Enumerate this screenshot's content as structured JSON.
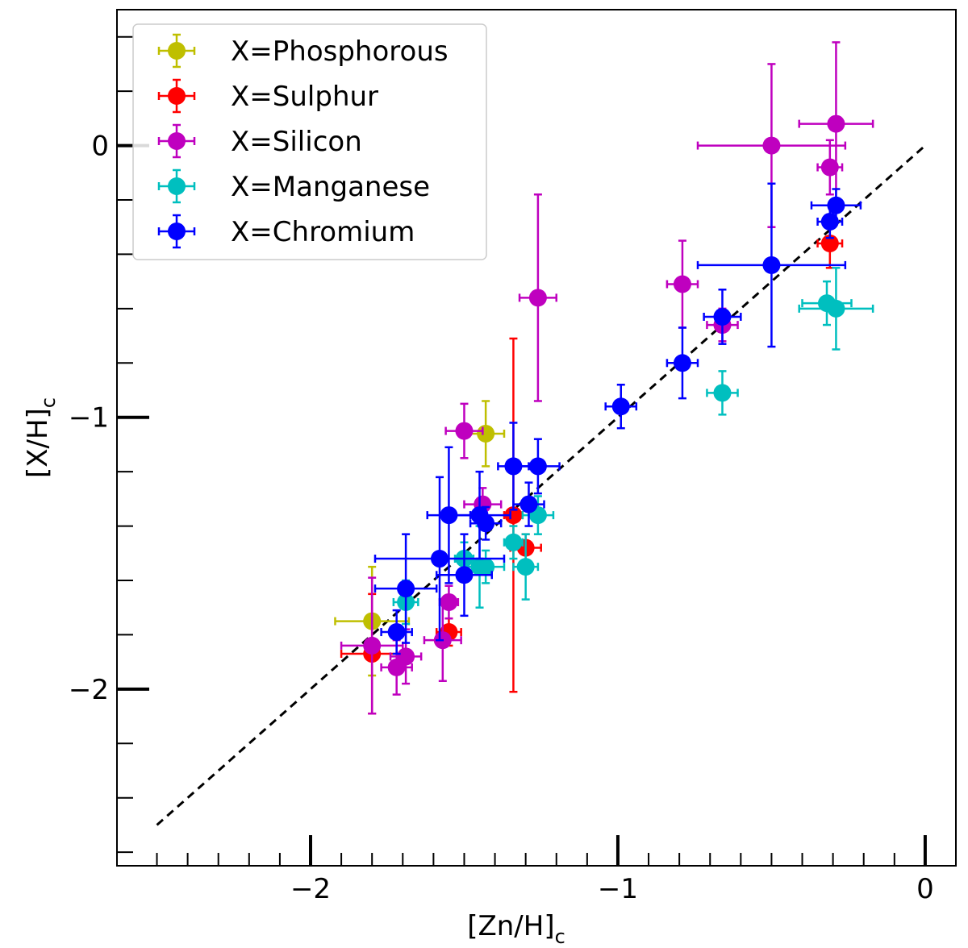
{
  "chart_data": {
    "type": "scatter",
    "xlabel": "[Zn/H]",
    "xlabel_sub": "c",
    "ylabel": "[X/H]",
    "ylabel_sub": "c",
    "xlim": [
      -2.63,
      0.1
    ],
    "ylim": [
      -2.65,
      0.5
    ],
    "x_ticks": [
      {
        "value": -2,
        "label": "−2"
      },
      {
        "value": -1,
        "label": "−1"
      },
      {
        "value": 0,
        "label": "0"
      }
    ],
    "y_ticks": [
      {
        "value": 0,
        "label": "0"
      },
      {
        "value": -1,
        "label": "−1"
      },
      {
        "value": -2,
        "label": "−2"
      }
    ],
    "reference_line": {
      "style": "dashed",
      "color": "#000000",
      "x": [
        -2.5,
        0.0
      ],
      "y": [
        -2.5,
        0.0
      ]
    },
    "legend_position": "top-left",
    "series": [
      {
        "name": "X=Phosphorous",
        "color": "#bfbf00",
        "points": [
          {
            "x": -1.8,
            "y": -1.75,
            "xerr": 0.12,
            "yerr": 0.2
          },
          {
            "x": -1.43,
            "y": -1.06,
            "xerr": 0.06,
            "yerr": 0.12
          }
        ]
      },
      {
        "name": "X=Sulphur",
        "color": "#ff0000",
        "points": [
          {
            "x": -1.8,
            "y": -1.87,
            "xerr": 0.1,
            "yerr": 0.22
          },
          {
            "x": -1.55,
            "y": -1.79,
            "xerr": 0.04,
            "yerr": 0.05
          },
          {
            "x": -1.34,
            "y": -1.36,
            "xerr": 0.03,
            "yerr": 0.65
          },
          {
            "x": -1.3,
            "y": -1.48,
            "xerr": 0.05,
            "yerr": 0.05
          },
          {
            "x": -0.31,
            "y": -0.36,
            "xerr": 0.04,
            "yerr": 0.09
          }
        ]
      },
      {
        "name": "X=Silicon",
        "color": "#bf00bf",
        "points": [
          {
            "x": -1.8,
            "y": -1.84,
            "xerr": 0.1,
            "yerr": 0.25
          },
          {
            "x": -1.72,
            "y": -1.92,
            "xerr": 0.05,
            "yerr": 0.1
          },
          {
            "x": -1.69,
            "y": -1.88,
            "xerr": 0.05,
            "yerr": 0.1
          },
          {
            "x": -1.57,
            "y": -1.82,
            "xerr": 0.06,
            "yerr": 0.15
          },
          {
            "x": -1.55,
            "y": -1.68,
            "xerr": 0.03,
            "yerr": 0.06
          },
          {
            "x": -1.5,
            "y": -1.05,
            "xerr": 0.06,
            "yerr": 0.1
          },
          {
            "x": -1.44,
            "y": -1.32,
            "xerr": 0.06,
            "yerr": 0.06
          },
          {
            "x": -1.26,
            "y": -0.56,
            "xerr": 0.06,
            "yerr": 0.38
          },
          {
            "x": -0.79,
            "y": -0.51,
            "xerr": 0.05,
            "yerr": 0.16
          },
          {
            "x": -0.66,
            "y": -0.66,
            "xerr": 0.05,
            "yerr": 0.06
          },
          {
            "x": -0.5,
            "y": 0.0,
            "xerr": 0.24,
            "yerr": 0.3
          },
          {
            "x": -0.31,
            "y": -0.08,
            "xerr": 0.04,
            "yerr": 0.1
          },
          {
            "x": -0.29,
            "y": 0.08,
            "xerr": 0.12,
            "yerr": 0.3
          }
        ]
      },
      {
        "name": "X=Manganese",
        "color": "#00bfbf",
        "points": [
          {
            "x": -1.69,
            "y": -1.68,
            "xerr": 0.04,
            "yerr": 0.08
          },
          {
            "x": -1.5,
            "y": -1.52,
            "xerr": 0.03,
            "yerr": 0.06
          },
          {
            "x": -1.45,
            "y": -1.55,
            "xerr": 0.04,
            "yerr": 0.15
          },
          {
            "x": -1.43,
            "y": -1.55,
            "xerr": 0.06,
            "yerr": 0.06
          },
          {
            "x": -1.34,
            "y": -1.46,
            "xerr": 0.03,
            "yerr": 0.06
          },
          {
            "x": -1.3,
            "y": -1.55,
            "xerr": 0.04,
            "yerr": 0.12
          },
          {
            "x": -1.26,
            "y": -1.36,
            "xerr": 0.05,
            "yerr": 0.07
          },
          {
            "x": -0.66,
            "y": -0.91,
            "xerr": 0.05,
            "yerr": 0.08
          },
          {
            "x": -0.32,
            "y": -0.58,
            "xerr": 0.08,
            "yerr": 0.08
          },
          {
            "x": -0.29,
            "y": -0.6,
            "xerr": 0.12,
            "yerr": 0.15
          }
        ]
      },
      {
        "name": "X=Chromium",
        "color": "#0000ff",
        "points": [
          {
            "x": -1.72,
            "y": -1.79,
            "xerr": 0.05,
            "yerr": 0.08
          },
          {
            "x": -1.69,
            "y": -1.63,
            "xerr": 0.1,
            "yerr": 0.2
          },
          {
            "x": -1.58,
            "y": -1.52,
            "xerr": 0.21,
            "yerr": 0.3
          },
          {
            "x": -1.55,
            "y": -1.36,
            "xerr": 0.07,
            "yerr": 0.25
          },
          {
            "x": -1.5,
            "y": -1.58,
            "xerr": 0.09,
            "yerr": 0.15
          },
          {
            "x": -1.45,
            "y": -1.36,
            "xerr": 0.1,
            "yerr": 0.16
          },
          {
            "x": -1.43,
            "y": -1.39,
            "xerr": 0.05,
            "yerr": 0.06
          },
          {
            "x": -1.34,
            "y": -1.18,
            "xerr": 0.05,
            "yerr": 0.16
          },
          {
            "x": -1.29,
            "y": -1.32,
            "xerr": 0.05,
            "yerr": 0.08
          },
          {
            "x": -1.26,
            "y": -1.18,
            "xerr": 0.07,
            "yerr": 0.1
          },
          {
            "x": -0.99,
            "y": -0.96,
            "xerr": 0.05,
            "yerr": 0.08
          },
          {
            "x": -0.79,
            "y": -0.8,
            "xerr": 0.05,
            "yerr": 0.13
          },
          {
            "x": -0.66,
            "y": -0.63,
            "xerr": 0.06,
            "yerr": 0.1
          },
          {
            "x": -0.5,
            "y": -0.44,
            "xerr": 0.24,
            "yerr": 0.3
          },
          {
            "x": -0.31,
            "y": -0.28,
            "xerr": 0.04,
            "yerr": 0.06
          },
          {
            "x": -0.29,
            "y": -0.22,
            "xerr": 0.08,
            "yerr": 0.06
          }
        ]
      }
    ]
  }
}
